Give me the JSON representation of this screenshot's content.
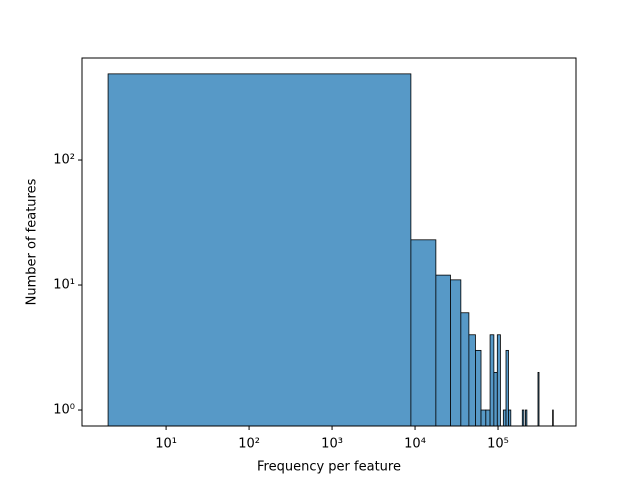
{
  "chart_data": {
    "type": "histogram",
    "xlabel": "Frequency per feature",
    "ylabel": "Number of features",
    "bins": [
      2,
      8911,
      17820,
      26729,
      35638,
      44547,
      53456,
      62365,
      71274,
      80183,
      89092,
      98001,
      106910,
      115819,
      124728,
      133637,
      142546,
      151455,
      160364,
      169273,
      178182,
      187091,
      196000,
      204909,
      213818,
      222727,
      231636,
      240545,
      249454,
      258363,
      267272,
      276181,
      285090,
      293999,
      302908,
      311817,
      320726,
      329635,
      338544,
      347453,
      356362,
      365271,
      374180,
      383089,
      391998,
      400907,
      409816,
      418725,
      427634,
      436543,
      445452,
      454361,
      463270
    ],
    "values": [
      489,
      23,
      12,
      11,
      6,
      4,
      3,
      1,
      1,
      4,
      2,
      4,
      0,
      1,
      3,
      1,
      0,
      0,
      0,
      0,
      0,
      0,
      1,
      0,
      1,
      0,
      0,
      0,
      0,
      0,
      0,
      0,
      0,
      0,
      2,
      0,
      0,
      0,
      0,
      0,
      0,
      0,
      0,
      0,
      0,
      0,
      0,
      0,
      0,
      0,
      0,
      1
    ],
    "color": "#5799c7",
    "edgecolor": "#000000",
    "xscale": "log",
    "yscale": "log",
    "xlim": [
      0.97,
      870000
    ],
    "ylim": [
      0.745,
      655
    ],
    "xticks": [
      {
        "value": 10,
        "label": "10¹"
      },
      {
        "value": 100,
        "label": "10²"
      },
      {
        "value": 1000,
        "label": "10³"
      },
      {
        "value": 10000,
        "label": "10⁴"
      },
      {
        "value": 100000,
        "label": "10⁵"
      }
    ],
    "yticks": [
      {
        "value": 1,
        "label": "10⁰"
      },
      {
        "value": 10,
        "label": "10¹"
      },
      {
        "value": 100,
        "label": "10²"
      }
    ]
  }
}
